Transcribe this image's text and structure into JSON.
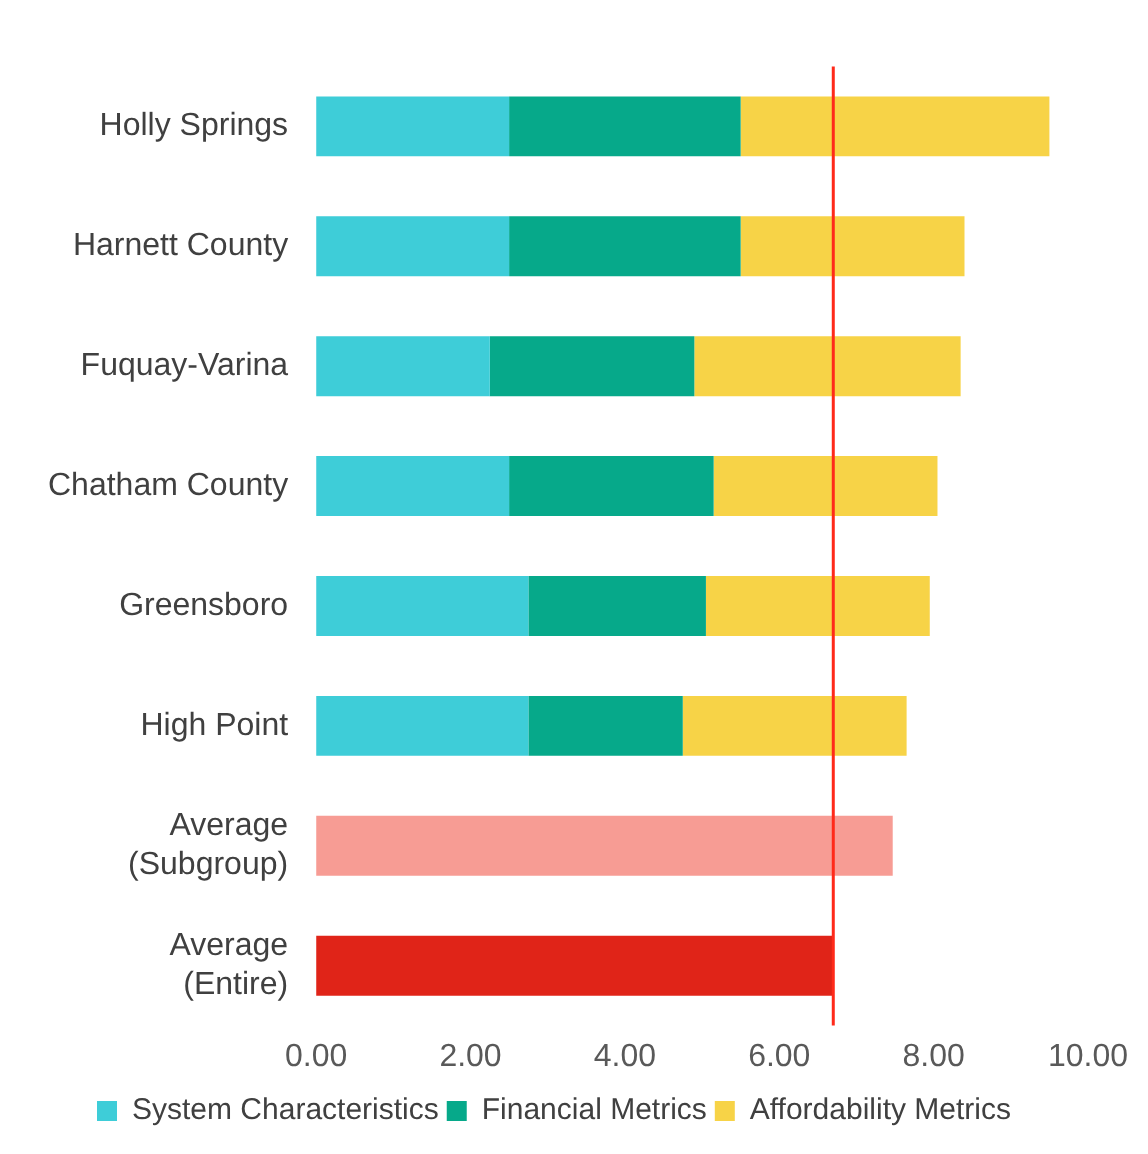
{
  "chart_data": {
    "type": "bar",
    "orientation": "horizontal",
    "stacked": true,
    "categories": [
      "Holly Springs",
      "Harnett County",
      "Fuquay-Varina",
      "Chatham County",
      "Greensboro",
      "High Point",
      "Average (Subgroup)",
      "Average (Entire)"
    ],
    "series": [
      {
        "name": "System Characteristics",
        "color": "#3ecdd8",
        "values": [
          2.5,
          2.5,
          2.25,
          2.5,
          2.75,
          2.75,
          null,
          null
        ]
      },
      {
        "name": "Financial Metrics",
        "color": "#06a98a",
        "values": [
          3.0,
          3.0,
          2.65,
          2.65,
          2.3,
          2.0,
          null,
          null
        ]
      },
      {
        "name": "Affordability Metrics",
        "color": "#f7d347",
        "values": [
          4.0,
          2.9,
          3.45,
          2.9,
          2.9,
          2.9,
          null,
          null
        ]
      },
      {
        "colors": [
          "#f79c94",
          "#f79c94",
          "#f79c94",
          "#f79c94",
          "#f79c94",
          "#f79c94",
          "#f79c94",
          "#e02418"
        ],
        "values": [
          null,
          null,
          null,
          null,
          null,
          null,
          7.47,
          6.7
        ]
      }
    ],
    "xlim": [
      0,
      10
    ],
    "xticks": [
      {
        "value": 0,
        "label": "0.00"
      },
      {
        "value": 2,
        "label": "2.00"
      },
      {
        "value": 4,
        "label": "4.00"
      },
      {
        "value": 6,
        "label": "6.00"
      },
      {
        "value": 8,
        "label": "8.00"
      },
      {
        "value": 10,
        "label": "10.00"
      }
    ],
    "ref_lines": [
      {
        "axis": "x",
        "value": 6.7,
        "color": "#ff2a1a"
      }
    ],
    "grid": false,
    "legend": "bottom"
  }
}
